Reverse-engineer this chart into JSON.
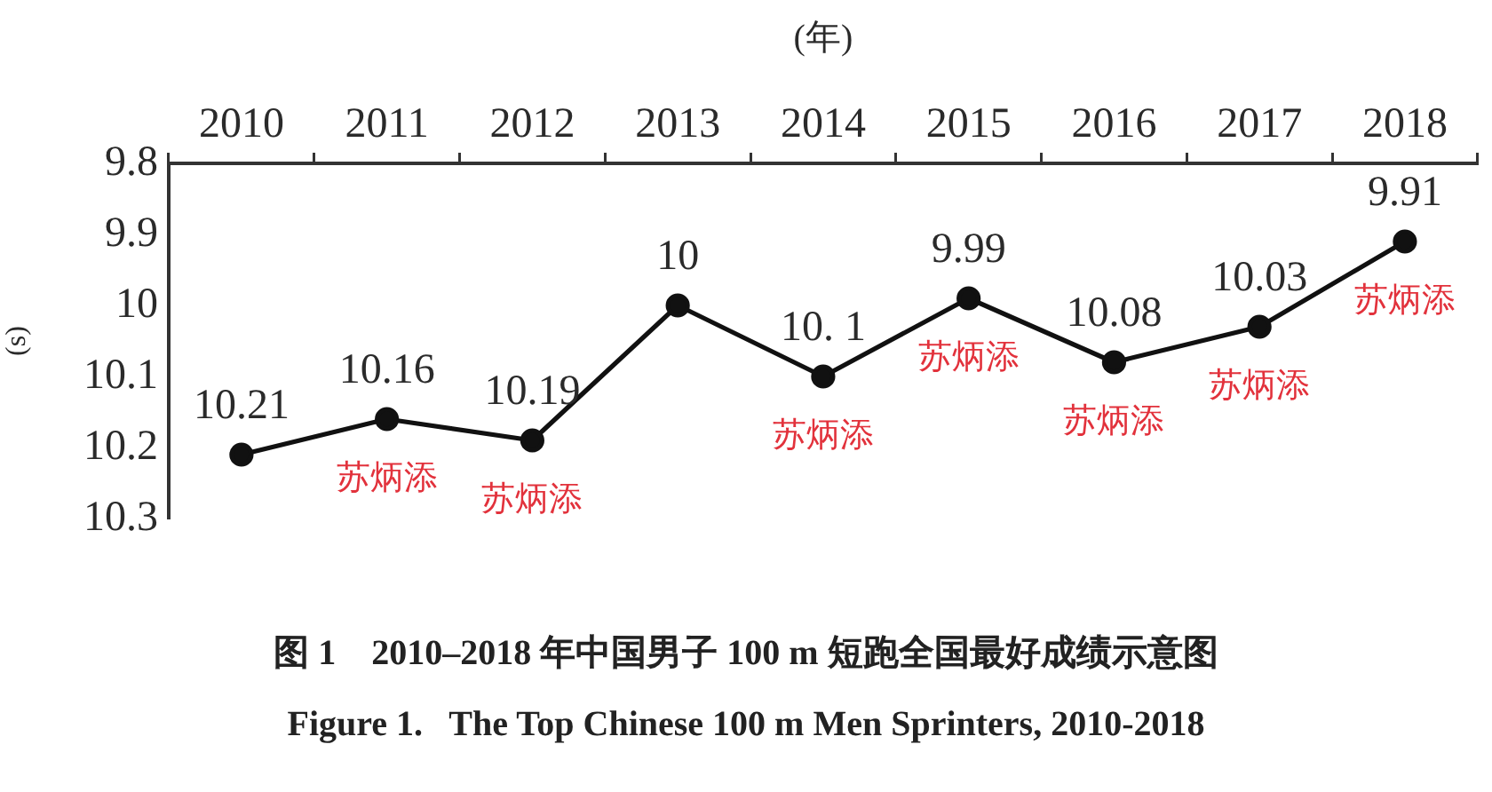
{
  "chart_data": {
    "type": "line",
    "xlabel": "(年)",
    "ylabel": "(s)",
    "categories": [
      "2010",
      "2011",
      "2012",
      "2013",
      "2014",
      "2015",
      "2016",
      "2017",
      "2018"
    ],
    "series": [
      {
        "color": "#111111",
        "values": [
          10.21,
          10.16,
          10.19,
          10,
          10.1,
          9.99,
          10.08,
          10.03,
          9.91
        ],
        "value_labels": [
          "10.21",
          "10.16",
          "10.19",
          "10",
          "10. 1",
          "9.99",
          "10.08",
          "10.03",
          "9.91"
        ]
      }
    ],
    "ylim": [
      10.3,
      9.8
    ],
    "yticks": [
      9.8,
      9.9,
      10,
      10.1,
      10.2,
      10.3
    ],
    "marker": "circle",
    "line_style": "solid",
    "annotations": [
      {
        "text": "苏炳添",
        "x": "2011",
        "y": 10.16
      },
      {
        "text": "苏炳添",
        "x": "2012",
        "y": 10.19
      },
      {
        "text": "苏炳添",
        "x": "2014",
        "y": 10.1
      },
      {
        "text": "苏炳添",
        "x": "2015",
        "y": 9.99
      },
      {
        "text": "苏炳添",
        "x": "2016",
        "y": 10.08
      },
      {
        "text": "苏炳添",
        "x": "2017",
        "y": 10.03
      },
      {
        "text": "苏炳添",
        "x": "2018",
        "y": 9.91
      },
      "图 1　2010–2018 年中国男子 100 m 短跑全国最好成绩示意图",
      "Figure 1.   The Top Chinese 100 m Men Sprinters, 2010-2018"
    ]
  }
}
